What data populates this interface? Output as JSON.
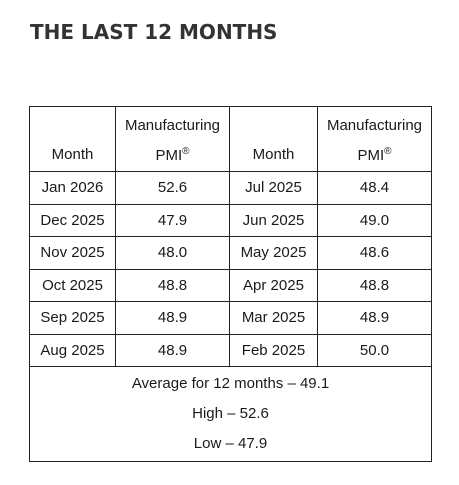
{
  "title": "THE LAST 12 MONTHS",
  "table": {
    "headers": {
      "month": "Month",
      "pmi_line1": "Manufacturing",
      "pmi_line2": "PMI",
      "pmi_sup": "®"
    },
    "rows": [
      {
        "left_month": "Jan 2026",
        "left_pmi": "52.6",
        "right_month": "Jul 2025",
        "right_pmi": "48.4"
      },
      {
        "left_month": "Dec 2025",
        "left_pmi": "47.9",
        "right_month": "Jun 2025",
        "right_pmi": "49.0"
      },
      {
        "left_month": "Nov 2025",
        "left_pmi": "48.0",
        "right_month": "May 2025",
        "right_pmi": "48.6"
      },
      {
        "left_month": "Oct 2025",
        "left_pmi": "48.8",
        "right_month": "Apr 2025",
        "right_pmi": "48.8"
      },
      {
        "left_month": "Sep 2025",
        "left_pmi": "48.9",
        "right_month": "Mar 2025",
        "right_pmi": "48.9"
      },
      {
        "left_month": "Aug 2025",
        "left_pmi": "48.9",
        "right_month": "Feb 2025",
        "right_pmi": "50.0"
      }
    ],
    "summary": {
      "average": "Average for 12 months – 49.1",
      "high": "High – 52.6",
      "low": "Low – 47.9"
    }
  }
}
